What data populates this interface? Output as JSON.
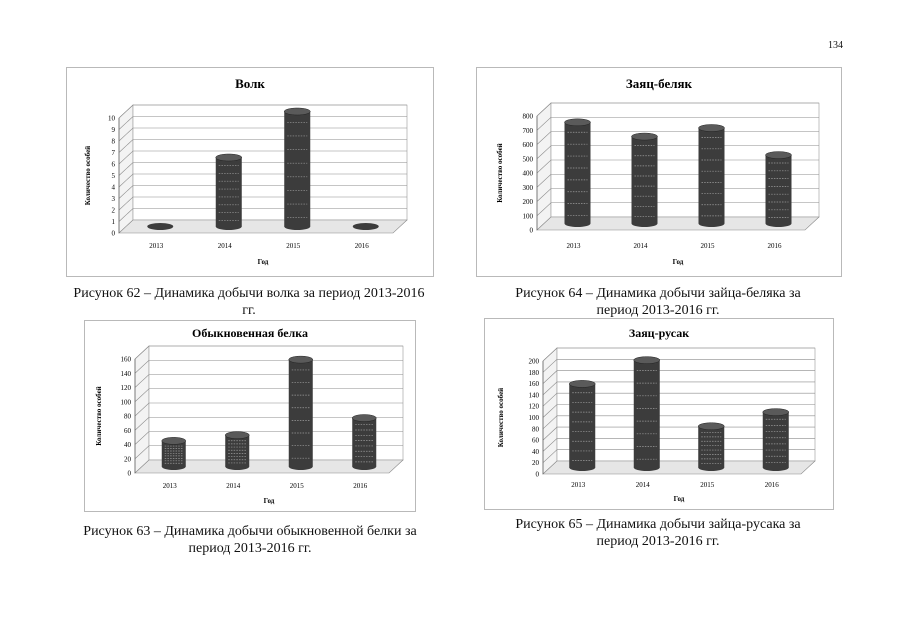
{
  "page_number": "134",
  "captions": [
    "Рисунок 62 – Динамика добычи волка за период 2013-2016 гг.",
    "Рисунок 64 – Динамика добычи зайца-беляка за период 2013-2016 гг.",
    "Рисунок 63 – Динамика добычи обыкновенной белки за период 2013-2016 гг.",
    "Рисунок 65 – Динамика добычи зайца-русака за период 2013-2016 гг."
  ],
  "chart_data": [
    {
      "type": "bar",
      "title": "Волк",
      "xlabel": "Год",
      "ylabel": "Количество особей",
      "categories": [
        "2013",
        "2014",
        "2015",
        "2016"
      ],
      "values": [
        0,
        6,
        10,
        0
      ],
      "yticks": [
        "0",
        "1",
        "2",
        "3",
        "4",
        "5",
        "6",
        "7",
        "8",
        "9",
        "10"
      ],
      "ylim": [
        0,
        10
      ],
      "grid": true,
      "bar_color": "#3c3c3c"
    },
    {
      "type": "bar",
      "title": "Заяц-беляк",
      "xlabel": "Год",
      "ylabel": "Количество особей",
      "categories": [
        "2013",
        "2014",
        "2015",
        "2016"
      ],
      "values": [
        710,
        610,
        670,
        480
      ],
      "yticks": [
        "0",
        "100",
        "200",
        "300",
        "400",
        "500",
        "600",
        "700",
        "800"
      ],
      "ylim": [
        0,
        800
      ],
      "grid": true,
      "bar_color": "#3c3c3c"
    },
    {
      "type": "bar",
      "title": "Обыкновенная белка",
      "xlabel": "Год",
      "ylabel": "Количество особей",
      "categories": [
        "2013",
        "2014",
        "2015",
        "2016"
      ],
      "values": [
        36,
        44,
        150,
        68
      ],
      "yticks": [
        "0",
        "20",
        "40",
        "60",
        "80",
        "100",
        "120",
        "140",
        "160"
      ],
      "ylim": [
        0,
        160
      ],
      "grid": true,
      "bar_color": "#3c3c3c"
    },
    {
      "type": "bar",
      "title": "Заяц-русак",
      "xlabel": "Год",
      "ylabel": "Количество особей",
      "categories": [
        "2013",
        "2014",
        "2015",
        "2016"
      ],
      "values": [
        148,
        190,
        73,
        98
      ],
      "yticks": [
        "0",
        "20",
        "40",
        "60",
        "80",
        "100",
        "120",
        "140",
        "160",
        "180",
        "200"
      ],
      "ylim": [
        0,
        200
      ],
      "grid": true,
      "bar_color": "#3c3c3c"
    }
  ]
}
